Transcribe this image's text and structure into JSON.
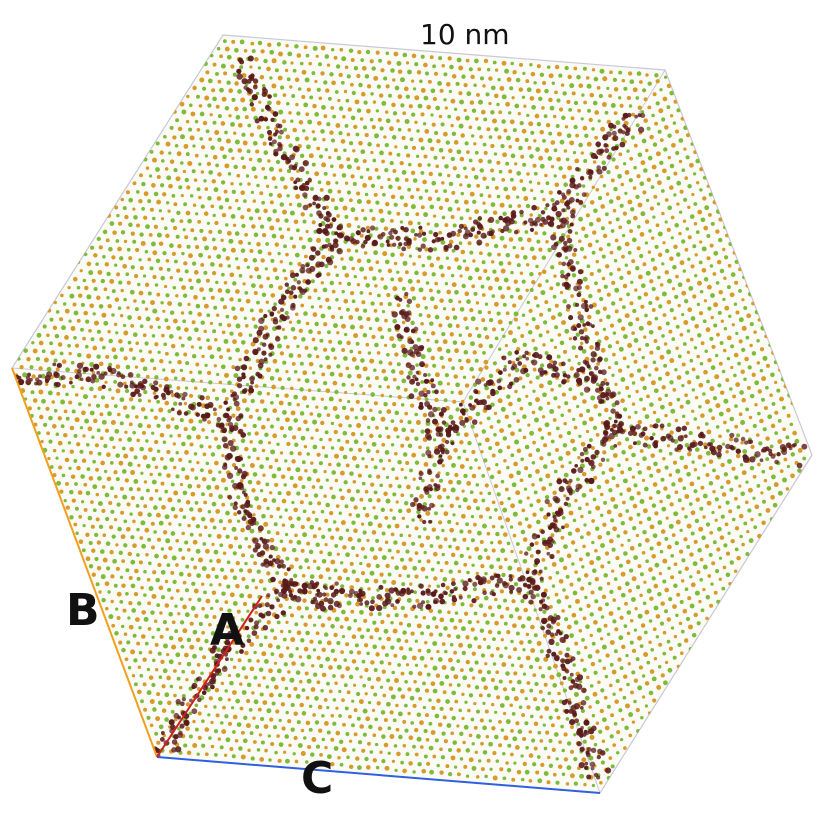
{
  "scale_bar": {
    "label": "10 nm"
  },
  "axes": [
    {
      "label": "B",
      "color": "#f0a020"
    },
    {
      "label": "A",
      "color": "#d02020"
    },
    {
      "label": "C",
      "color": "#3060e0"
    }
  ],
  "colors": {
    "atom_green": "#7fba3a",
    "atom_orange": "#d89a2a",
    "grain_boundary": "#5a1a1a",
    "cell_edge": "#c8c8d8",
    "background": "#ffffff"
  }
}
